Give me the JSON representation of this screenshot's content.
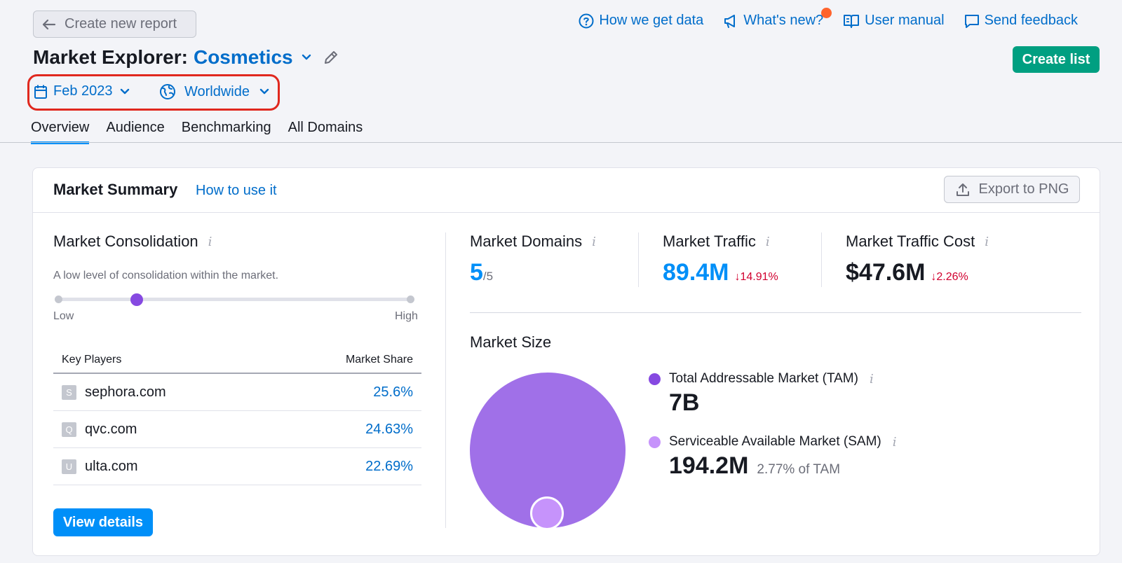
{
  "header": {
    "back_label": "Create new report",
    "links": [
      {
        "label": "How we get data",
        "icon": "question-circle-icon"
      },
      {
        "label": "What's new?",
        "icon": "megaphone-icon"
      },
      {
        "label": "User manual",
        "icon": "book-icon"
      },
      {
        "label": "Send feedback",
        "icon": "chat-icon"
      }
    ],
    "title_prefix": "Market Explorer:",
    "market": "Cosmetics",
    "create_list_label": "Create list"
  },
  "filters": {
    "date": "Feb 2023",
    "region": "Worldwide"
  },
  "tabs": [
    "Overview",
    "Audience",
    "Benchmarking",
    "All Domains"
  ],
  "card": {
    "title": "Market Summary",
    "how_to_link": "How to use it",
    "export_label": "Export to PNG"
  },
  "consolidation": {
    "title": "Market Consolidation",
    "description": "A low level of consolidation within the market.",
    "level_fraction": 0.2,
    "low_label": "Low",
    "high_label": "High"
  },
  "key_players": {
    "col_player": "Key Players",
    "col_share": "Market Share",
    "rows": [
      {
        "initial": "S",
        "domain": "sephora.com",
        "share": "25.6%"
      },
      {
        "initial": "Q",
        "domain": "qvc.com",
        "share": "24.63%"
      },
      {
        "initial": "U",
        "domain": "ulta.com",
        "share": "22.69%"
      }
    ],
    "view_details_label": "View details"
  },
  "metrics": {
    "domains": {
      "label": "Market Domains",
      "value": "5",
      "suffix": "/5"
    },
    "traffic": {
      "label": "Market Traffic",
      "value": "89.4M",
      "delta": "↓14.91%"
    },
    "cost": {
      "label": "Market Traffic Cost",
      "value": "$47.6M",
      "delta": "↓2.26%"
    }
  },
  "market_size": {
    "title": "Market Size",
    "tam": {
      "label": "Total Addressable Market (TAM)",
      "value": "7B",
      "color": "#8649e1"
    },
    "sam": {
      "label": "Serviceable Available Market (SAM)",
      "value": "194.2M",
      "sub": "2.77% of TAM",
      "color": "#c693fb"
    }
  },
  "colors": {
    "accent_blue": "#006dca",
    "primary_button": "#008ff8",
    "create_button": "#009f81",
    "negative": "#d1002f",
    "highlight_box": "#e0281e"
  }
}
